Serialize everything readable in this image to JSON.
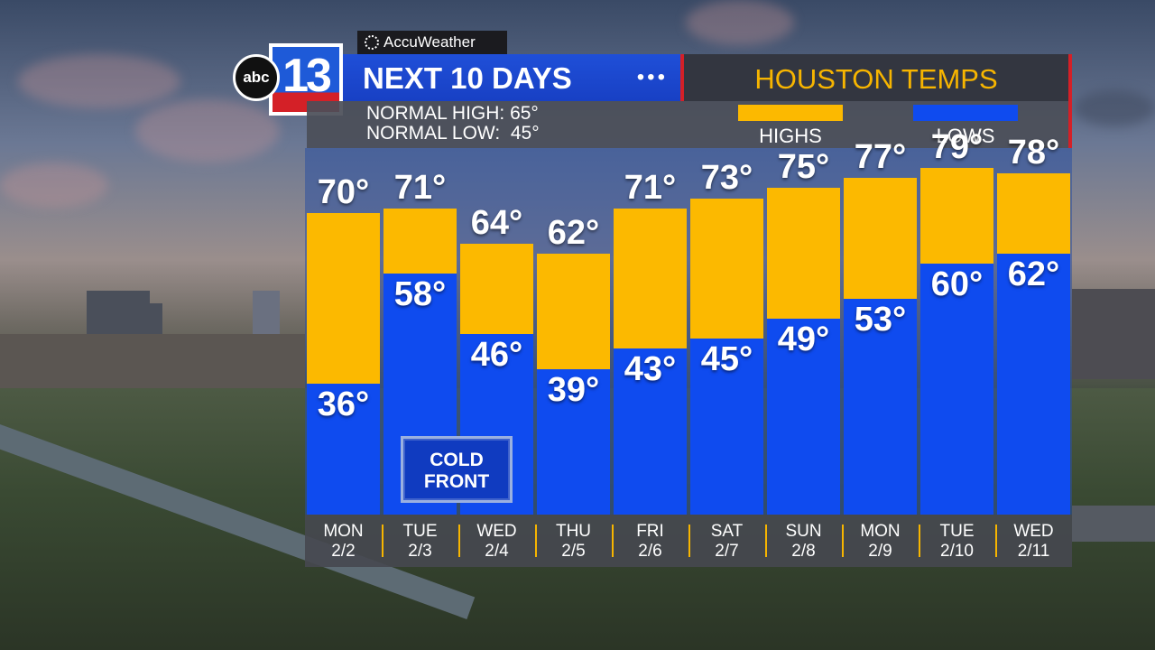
{
  "branding": {
    "station_abc": "abc",
    "station_number": "13",
    "provider": "AccuWeather"
  },
  "header": {
    "title": "NEXT 10 DAYS",
    "dots": "•••",
    "right_title": "HOUSTON TEMPS"
  },
  "normals": {
    "high_label": "NORMAL HIGH: 65°",
    "low_label": "NORMAL LOW:  45°"
  },
  "legend": {
    "highs": {
      "label": "HIGHS",
      "color": "#fcb900"
    },
    "lows": {
      "label": "LOWS",
      "color": "#0f4bef"
    }
  },
  "annotation": {
    "line1": "COLD",
    "line2": "FRONT"
  },
  "chart_data": {
    "type": "bar",
    "title": "HOUSTON TEMPS",
    "categories": [
      {
        "dow": "MON",
        "date": "2/2"
      },
      {
        "dow": "TUE",
        "date": "2/3"
      },
      {
        "dow": "WED",
        "date": "2/4"
      },
      {
        "dow": "THU",
        "date": "2/5"
      },
      {
        "dow": "FRI",
        "date": "2/6"
      },
      {
        "dow": "SAT",
        "date": "2/7"
      },
      {
        "dow": "SUN",
        "date": "2/8"
      },
      {
        "dow": "MON",
        "date": "2/9"
      },
      {
        "dow": "TUE",
        "date": "2/10"
      },
      {
        "dow": "WED",
        "date": "2/11"
      }
    ],
    "series": [
      {
        "name": "HIGHS",
        "values": [
          70,
          71,
          64,
          62,
          71,
          73,
          75,
          77,
          79,
          78
        ],
        "color": "#fcb900"
      },
      {
        "name": "LOWS",
        "values": [
          36,
          58,
          46,
          39,
          43,
          45,
          49,
          53,
          60,
          62
        ],
        "color": "#0f4bef"
      }
    ],
    "unit": "°",
    "ylim": [
      10,
      83
    ]
  }
}
